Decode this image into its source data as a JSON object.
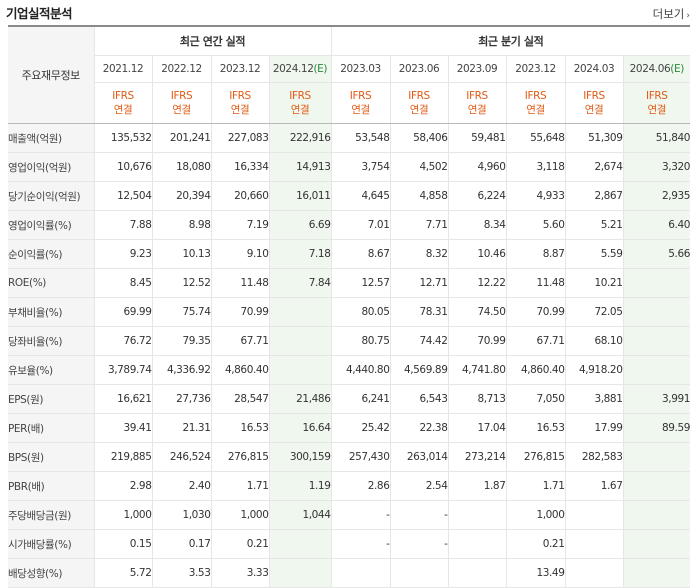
{
  "header": {
    "title": "기업실적분석",
    "more_label": "더보기"
  },
  "table": {
    "row_header": "주요재무정보",
    "group_annual": "최근 연간 실적",
    "group_quarter": "최근 분기 실적",
    "annual_periods": [
      {
        "label": "2021.12",
        "est": ""
      },
      {
        "label": "2022.12",
        "est": ""
      },
      {
        "label": "2023.12",
        "est": ""
      },
      {
        "label": "2024.12",
        "est": "(E)"
      }
    ],
    "quarter_periods": [
      {
        "label": "2023.03",
        "est": ""
      },
      {
        "label": "2023.06",
        "est": ""
      },
      {
        "label": "2023.09",
        "est": ""
      },
      {
        "label": "2023.12",
        "est": ""
      },
      {
        "label": "2024.03",
        "est": ""
      },
      {
        "label": "2024.06",
        "est": "(E)"
      }
    ],
    "ifrs_line1": "IFRS",
    "ifrs_line2": "연결",
    "rows": [
      {
        "label": "매출액(억원)",
        "values": [
          "135,532",
          "201,241",
          "227,083",
          "222,916",
          "53,548",
          "58,406",
          "59,481",
          "55,648",
          "51,309",
          "51,840"
        ]
      },
      {
        "label": "영업이익(억원)",
        "values": [
          "10,676",
          "18,080",
          "16,334",
          "14,913",
          "3,754",
          "4,502",
          "4,960",
          "3,118",
          "2,674",
          "3,320"
        ]
      },
      {
        "label": "당기순이익(억원)",
        "values": [
          "12,504",
          "20,394",
          "20,660",
          "16,011",
          "4,645",
          "4,858",
          "6,224",
          "4,933",
          "2,867",
          "2,935"
        ]
      },
      {
        "label": "영업이익률(%)",
        "values": [
          "7.88",
          "8.98",
          "7.19",
          "6.69",
          "7.01",
          "7.71",
          "8.34",
          "5.60",
          "5.21",
          "6.40"
        ]
      },
      {
        "label": "순이익률(%)",
        "values": [
          "9.23",
          "10.13",
          "9.10",
          "7.18",
          "8.67",
          "8.32",
          "10.46",
          "8.87",
          "5.59",
          "5.66"
        ]
      },
      {
        "label": "ROE(%)",
        "values": [
          "8.45",
          "12.52",
          "11.48",
          "7.84",
          "12.57",
          "12.71",
          "12.22",
          "11.48",
          "10.21",
          ""
        ]
      },
      {
        "label": "부채비율(%)",
        "values": [
          "69.99",
          "75.74",
          "70.99",
          "",
          "80.05",
          "78.31",
          "74.50",
          "70.99",
          "72.05",
          ""
        ]
      },
      {
        "label": "당좌비율(%)",
        "values": [
          "76.72",
          "79.35",
          "67.71",
          "",
          "80.75",
          "74.42",
          "70.99",
          "67.71",
          "68.10",
          ""
        ]
      },
      {
        "label": "유보율(%)",
        "values": [
          "3,789.74",
          "4,336.92",
          "4,860.40",
          "",
          "4,440.80",
          "4,569.89",
          "4,741.80",
          "4,860.40",
          "4,918.20",
          ""
        ]
      },
      {
        "label": "EPS(원)",
        "values": [
          "16,621",
          "27,736",
          "28,547",
          "21,486",
          "6,241",
          "6,543",
          "8,713",
          "7,050",
          "3,881",
          "3,991"
        ]
      },
      {
        "label": "PER(배)",
        "values": [
          "39.41",
          "21.31",
          "16.53",
          "16.64",
          "25.42",
          "22.38",
          "17.04",
          "16.53",
          "17.99",
          "89.59"
        ]
      },
      {
        "label": "BPS(원)",
        "values": [
          "219,885",
          "246,524",
          "276,815",
          "300,159",
          "257,430",
          "263,014",
          "273,214",
          "276,815",
          "282,583",
          ""
        ]
      },
      {
        "label": "PBR(배)",
        "values": [
          "2.98",
          "2.40",
          "1.71",
          "1.19",
          "2.86",
          "2.54",
          "1.87",
          "1.71",
          "1.67",
          ""
        ]
      },
      {
        "label": "주당배당금(원)",
        "values": [
          "1,000",
          "1,030",
          "1,000",
          "1,044",
          "-",
          "-",
          "",
          "1,000",
          "",
          ""
        ]
      },
      {
        "label": "시가배당률(%)",
        "values": [
          "0.15",
          "0.17",
          "0.21",
          "",
          "-",
          "-",
          "",
          "0.21",
          "",
          ""
        ]
      },
      {
        "label": "배당성향(%)",
        "values": [
          "5.72",
          "3.53",
          "3.33",
          "",
          "",
          "",
          "",
          "13.49",
          "",
          ""
        ]
      }
    ]
  }
}
